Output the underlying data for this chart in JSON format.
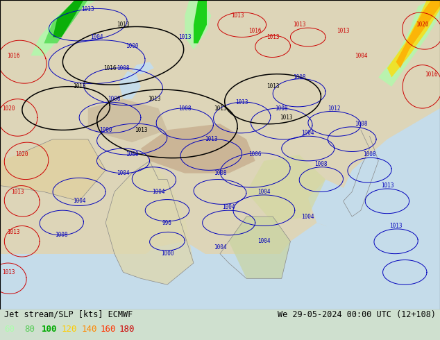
{
  "title_left": "Jet stream/SLP [kts] ECMWF",
  "title_right": "We 29-05-2024 00:00 UTC (12+108)",
  "legend_values": [
    60,
    80,
    100,
    120,
    140,
    160,
    180
  ],
  "legend_colors": [
    "#aaffaa",
    "#55cc55",
    "#00aa00",
    "#ffcc00",
    "#ff8800",
    "#ff3300",
    "#cc0000"
  ],
  "figsize": [
    6.34,
    4.9
  ],
  "dpi": 100,
  "font_size_title": 8.5,
  "font_size_legend": 9,
  "map_bg": "#cfe0cf",
  "land_color": "#ddd5b8",
  "ocean_color": "#b8d4e8",
  "mountain_color": "#c8b89a"
}
